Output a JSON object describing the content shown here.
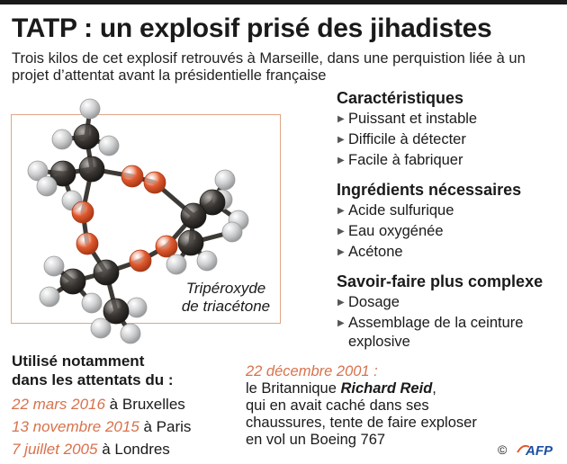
{
  "title": "TATP : un explosif prisé des jihadistes",
  "subtitle": "Trois kilos de cet explosif retrouvés à Marseille, dans une perquistion liée à un projet d’attentat avant la présidentielle française",
  "molecule_label": [
    "Tripéroxyde",
    "de triacétone"
  ],
  "sections": [
    {
      "title": "Caractéristiques",
      "items": [
        "Puissant et instable",
        "Difficile à détecter",
        "Facile à fabriquer"
      ]
    },
    {
      "title": "Ingrédients nécessaires",
      "items": [
        "Acide sulfurique",
        "Eau oxygénée",
        "Acétone"
      ]
    },
    {
      "title": "Savoir-faire plus complexe",
      "items": [
        "Dosage",
        "Assemblage de la ceinture explosive"
      ]
    }
  ],
  "used_in": {
    "heading": [
      "Utilisé notamment",
      "dans les attentats du :"
    ],
    "attacks": [
      {
        "date": "22 mars 2016",
        "place": " à Bruxelles"
      },
      {
        "date": "13 novembre 2015",
        "place": " à Paris"
      },
      {
        "date": "7 juillet 2005",
        "place": " à Londres"
      }
    ]
  },
  "reid": {
    "date": "22 décembre 2001 :",
    "prefix": "le Britannique ",
    "name": "Richard Reid",
    "suffix": ",",
    "lines": [
      "qui en avait caché dans ses",
      "chaussures, tente de faire exploser",
      "en vol un Boeing 767"
    ]
  },
  "credit": {
    "copyright": "©",
    "logo_text": "AFP"
  },
  "colors": {
    "accent": "#d8724c",
    "oxygen": "#e25a2e",
    "carbon": "#3a3633",
    "hydrogen": "#cfd0d1",
    "frame": "#e0a585",
    "logo": "#1d4fa3"
  },
  "icons": [
    "bullet-arrow-icon",
    "afp-logo-icon"
  ]
}
